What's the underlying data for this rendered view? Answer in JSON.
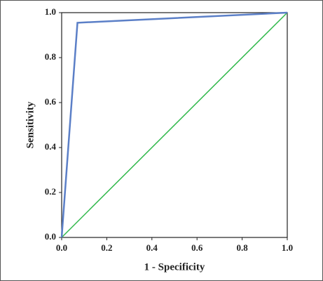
{
  "chart_data": {
    "type": "line",
    "x_label": "1 - Specificity",
    "y_label": "Sensitivity",
    "series": [
      {
        "color": "#5b7fc7",
        "x": [
          0,
          0.07,
          1
        ],
        "values": [
          0,
          0.955,
          1
        ]
      },
      {
        "color": "#2fb84a",
        "x": [
          0,
          1
        ],
        "values": [
          0,
          1
        ]
      }
    ],
    "xlim": [
      0,
      1
    ],
    "ylim": [
      0,
      1
    ],
    "xticks": [
      {
        "value": 0,
        "label": "0.0"
      },
      {
        "value": 0.2,
        "label": "0.2"
      },
      {
        "value": 0.4,
        "label": "0.4"
      },
      {
        "value": 0.6,
        "label": "0.6"
      },
      {
        "value": 0.8,
        "label": "0.8"
      },
      {
        "value": 1,
        "label": "1.0"
      }
    ],
    "yticks": [
      {
        "value": 0,
        "label": "0.0"
      },
      {
        "value": 0.2,
        "label": "0.2"
      },
      {
        "value": 0.4,
        "label": "0.4"
      },
      {
        "value": 0.6,
        "label": "0.6"
      },
      {
        "value": 0.8,
        "label": "0.8"
      },
      {
        "value": 1,
        "label": "1.0"
      }
    ],
    "grid": false
  }
}
